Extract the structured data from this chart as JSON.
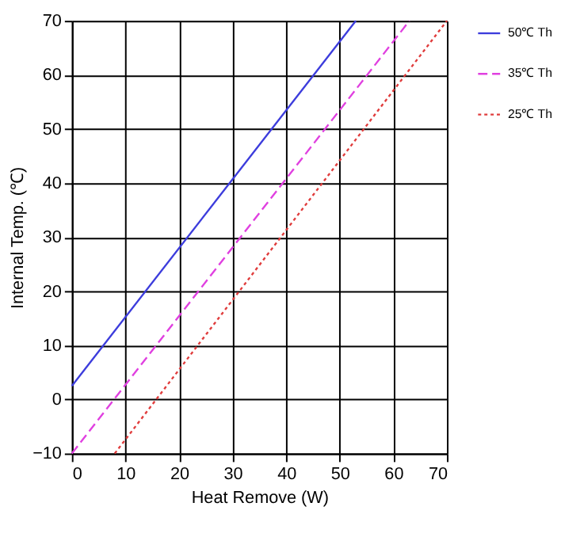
{
  "chart_data": {
    "type": "line",
    "xlabel": "Heat Remove (W)",
    "ylabel": "Internal Temp. (℃)",
    "xlim": [
      0,
      70
    ],
    "ylim": [
      -10,
      70
    ],
    "xticks": [
      0,
      10,
      20,
      30,
      40,
      50,
      60,
      70
    ],
    "yticks": [
      -10,
      0,
      10,
      20,
      30,
      40,
      50,
      60,
      70
    ],
    "grid": true,
    "legend": "right",
    "marker": "none",
    "series": [
      {
        "name": "50℃ Th",
        "color": "#3c3cdc",
        "line_style": "solid",
        "x": [
          0,
          53
        ],
        "values": [
          2.5,
          70
        ]
      },
      {
        "name": "35℃ Th",
        "color": "#e040e0",
        "line_style": "dashed",
        "x": [
          0,
          63
        ],
        "values": [
          -10,
          70
        ]
      },
      {
        "name": "25℃ Th",
        "color": "#e03c3c",
        "line_style": "dotted",
        "x": [
          8,
          70
        ],
        "values": [
          -10,
          70
        ]
      }
    ]
  }
}
